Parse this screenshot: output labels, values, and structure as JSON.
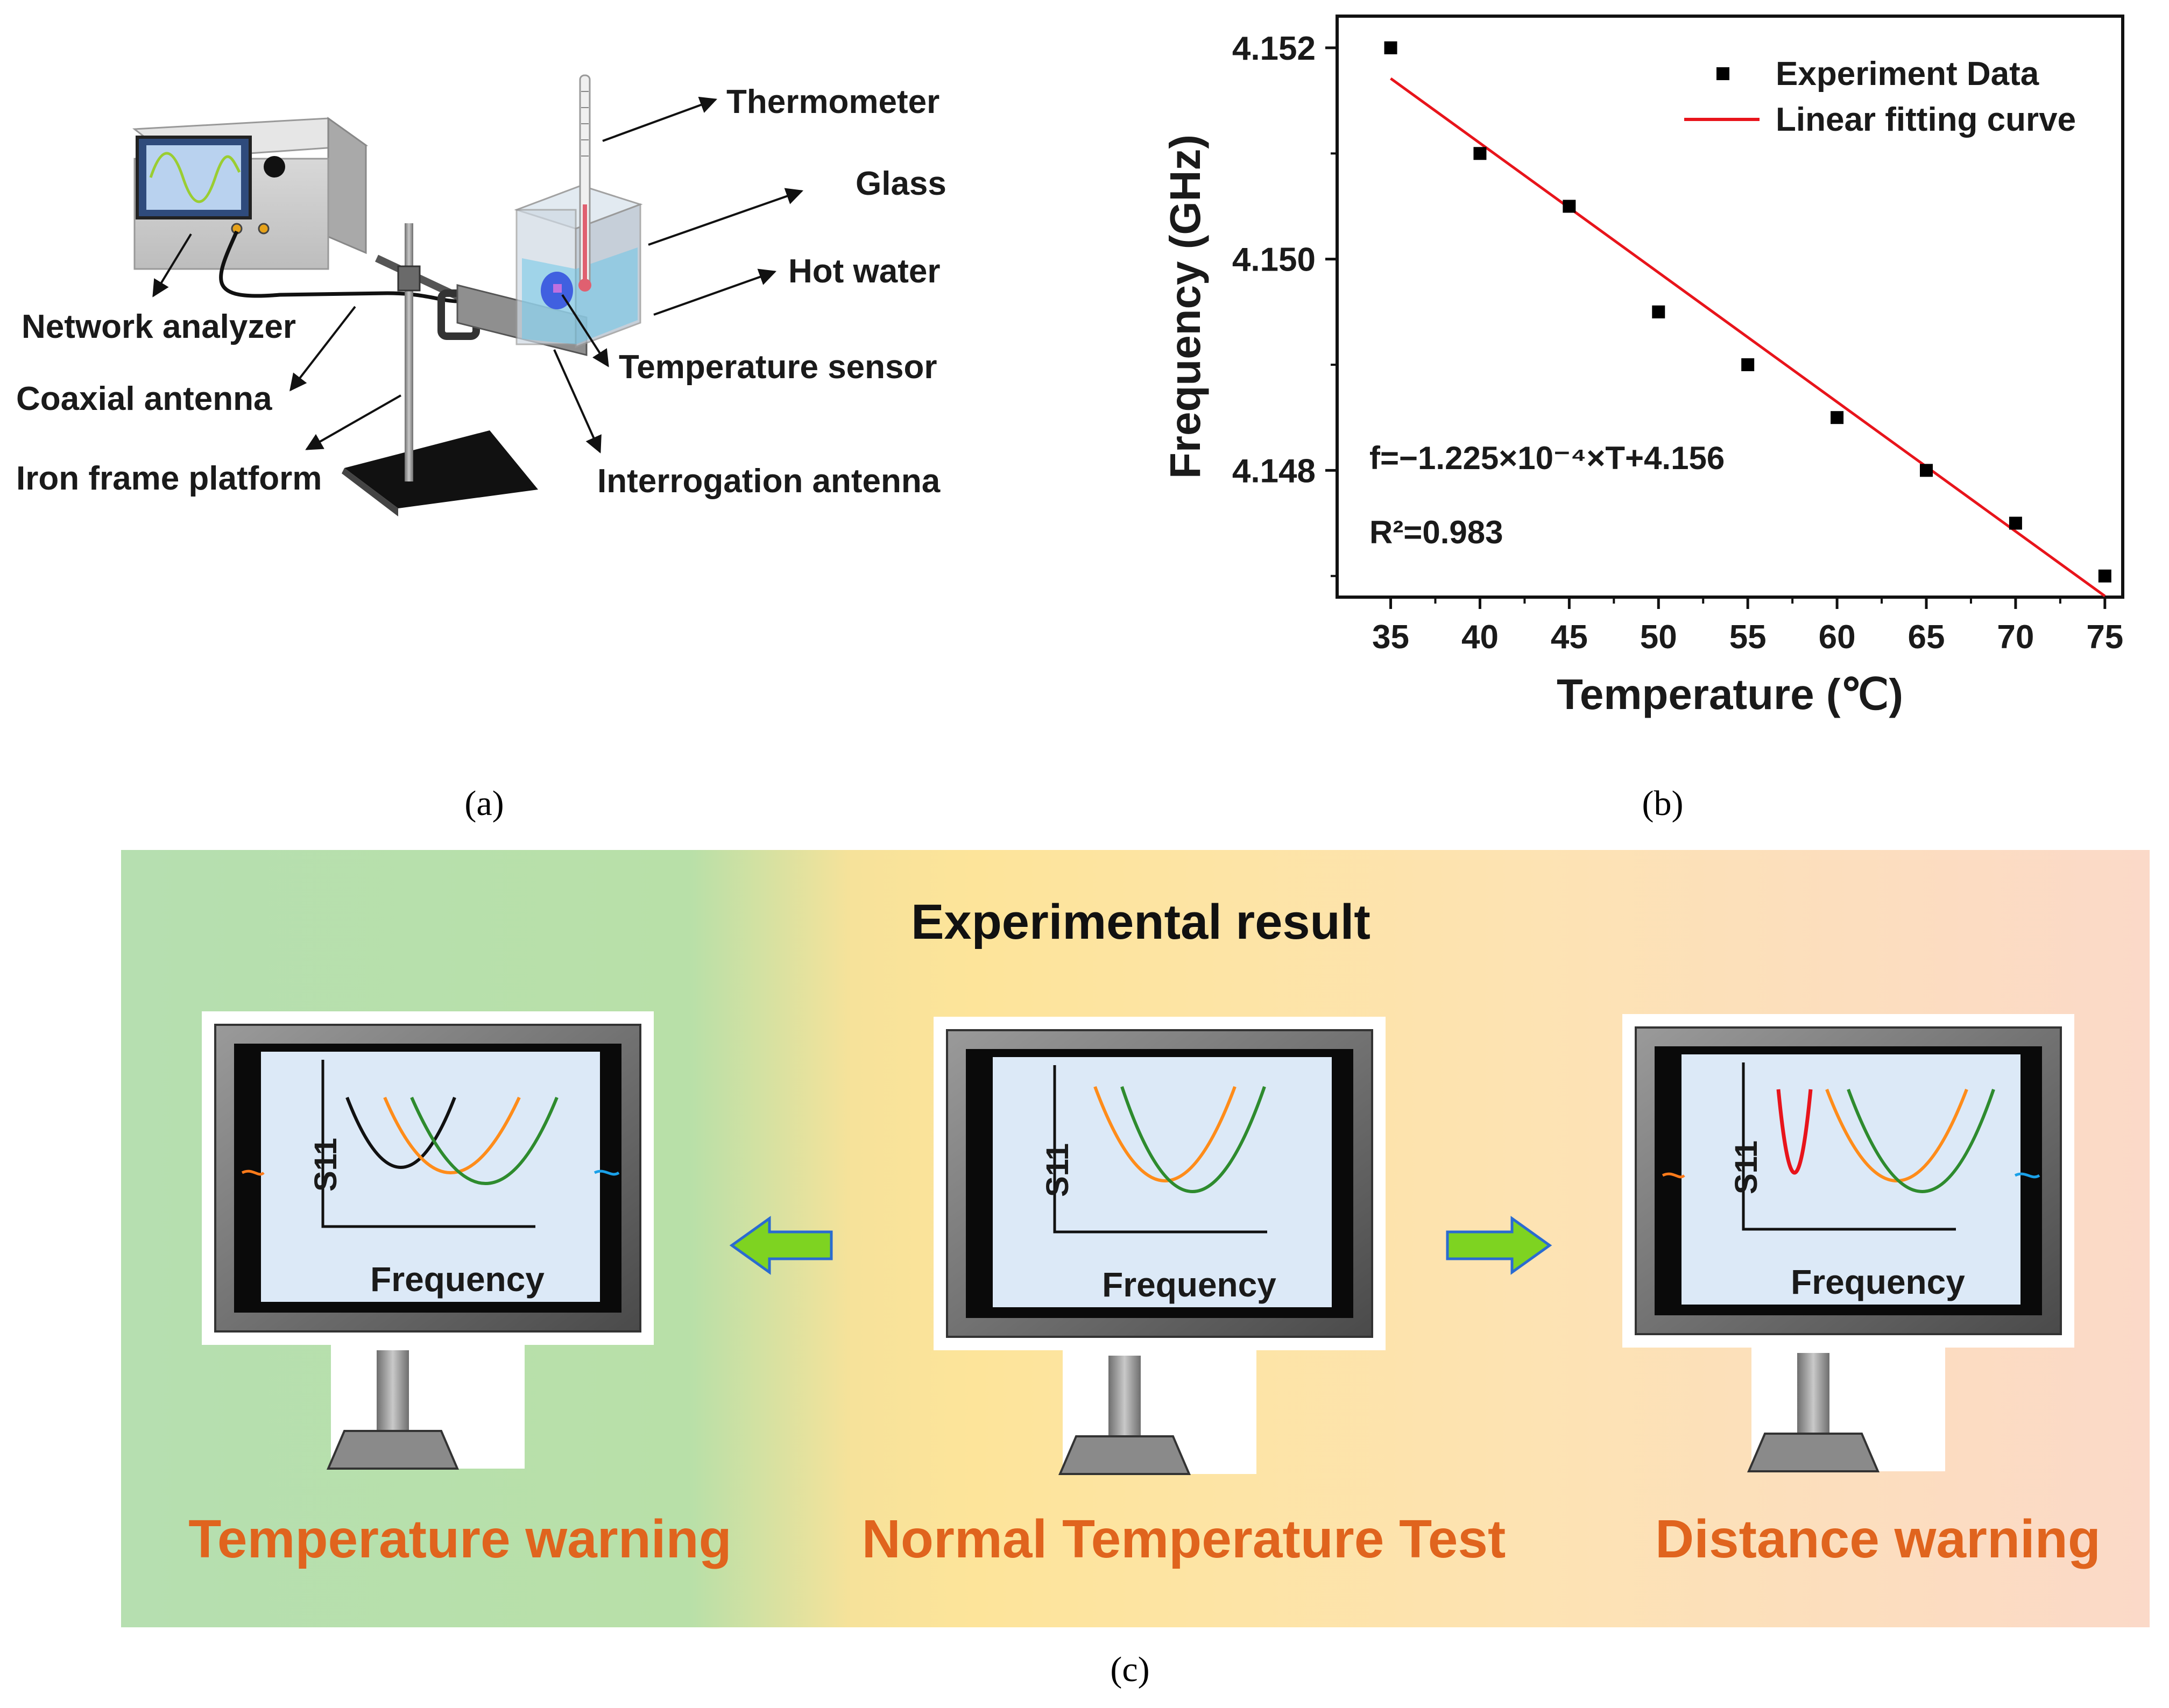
{
  "panel_a": {
    "caption": "(a)",
    "labels": {
      "thermometer": "Thermometer",
      "glass": "Glass",
      "hot_water": "Hot water",
      "network_analyzer": "Network analyzer",
      "coaxial_antenna": "Coaxial antenna",
      "temperature_sensor": "Temperature sensor",
      "iron_frame_platform": "Iron frame platform",
      "interrogation_antenna": "Interrogation antenna"
    },
    "colors": {
      "screen_wave": "#9acd32",
      "water": "#6ec6e8",
      "sensor": "#4060e0"
    }
  },
  "panel_b": {
    "caption": "(b)"
  },
  "chart_data": {
    "type": "scatter",
    "title": "",
    "xlabel": "Temperature (℃)",
    "ylabel": "Frequency (GHz)",
    "xlim": [
      32,
      76
    ],
    "ylim": [
      4.1468,
      4.1523
    ],
    "x_ticks": [
      35,
      40,
      45,
      50,
      55,
      60,
      65,
      70,
      75
    ],
    "x_tick_labels": [
      "35",
      "40",
      "45",
      "50",
      "55",
      "60",
      "65",
      "70",
      "75"
    ],
    "y_ticks": [
      4.148,
      4.15,
      4.152
    ],
    "y_tick_labels": [
      "4.148",
      "4.150",
      "4.152"
    ],
    "series": [
      {
        "name": "Experiment Data",
        "type": "scatter",
        "color": "#000000",
        "x": [
          35,
          40,
          45,
          50,
          55,
          60,
          65,
          70,
          75
        ],
        "y": [
          4.152,
          4.151,
          4.1505,
          4.1495,
          4.149,
          4.1485,
          4.148,
          4.1475,
          4.147
        ]
      },
      {
        "name": "Linear fitting curve",
        "type": "line",
        "color": "#e8141b",
        "x": [
          35,
          75
        ],
        "y": [
          4.15171,
          4.14681
        ]
      }
    ],
    "legend": [
      "Experiment Data",
      "Linear fitting curve"
    ],
    "legend_position": "top-right",
    "annotations": [
      "f=−1.225×10⁻⁴×T+4.156",
      "R²=0.983"
    ]
  },
  "panel_c": {
    "caption": "(c)",
    "title": "Experimental result",
    "left_label": "Temperature warning",
    "center_label": "Normal Temperature Test",
    "right_label": "Distance warning",
    "monitor_ylabel": "S11",
    "monitor_xlabel": "Frequency",
    "colors": {
      "green_bg": "#b6dfb0",
      "yellow_bg": "#fde49a",
      "peach_bg": "#fbd9c8",
      "arrow": "#7ed321",
      "orange_curve": "#ff8c1a",
      "green_curve": "#2e8b2e",
      "black_curve": "#111111",
      "red_curve": "#e8141b",
      "screen": "#dce9f7"
    }
  }
}
